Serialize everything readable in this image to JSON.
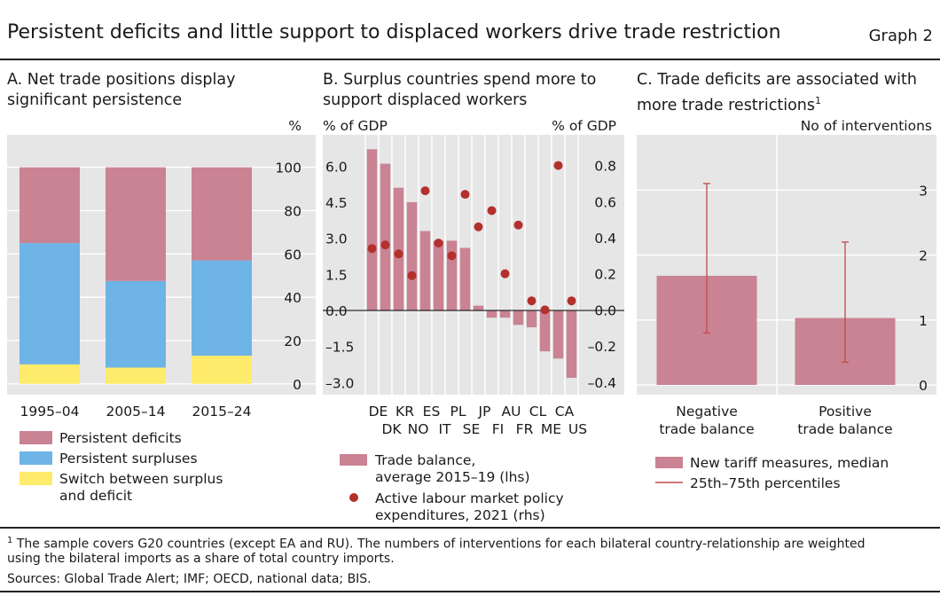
{
  "header": {
    "title": "Persistent deficits and little support to displaced workers drive trade restriction",
    "graph_label": "Graph 2"
  },
  "colors": {
    "panel_bg": "#e6e6e6",
    "deficit": "#c98393",
    "surplus": "#6eb4e6",
    "switch": "#ffeb6b",
    "dot": "#b3302d",
    "whisker": "#c24a4a"
  },
  "panel_a": {
    "title_line1": "A. Net trade positions display",
    "title_line2": "significant persistence"
  },
  "panel_b": {
    "title_line1": "B. Surplus countries spend more to",
    "title_line2": "support displaced workers"
  },
  "panel_c": {
    "title_line1": "C. Trade deficits are associated with",
    "title_line2": "more trade restrictions",
    "title_sup": "1"
  },
  "chart_data": [
    {
      "type": "bar",
      "stacked": true,
      "categories": [
        "1995–04",
        "2005–14",
        "2015–24"
      ],
      "series": [
        {
          "name": "Switch between surplus and deficit",
          "values": [
            9,
            7.5,
            13
          ]
        },
        {
          "name": "Persistent surpluses",
          "values": [
            56,
            40,
            44
          ]
        },
        {
          "name": "Persistent deficits",
          "values": [
            35,
            52.5,
            43
          ]
        }
      ],
      "ylabel": "%",
      "ylim": [
        -5,
        115
      ],
      "yticks": [
        0,
        20,
        40,
        60,
        80,
        100
      ],
      "legend": [
        {
          "label": "Persistent deficits"
        },
        {
          "label": "Persistent surpluses"
        },
        {
          "label": "Switch between surplus",
          "label2": "and deficit"
        }
      ],
      "legend_position": "bottom"
    },
    {
      "type": "bar",
      "categories": [
        "DE",
        "DK",
        "KR",
        "NO",
        "ES",
        "IT",
        "PL",
        "SE",
        "JP",
        "FI",
        "AU",
        "FR",
        "CL",
        "ME",
        "CA",
        "US"
      ],
      "x_labels_top": [
        "DE",
        "KR",
        "ES",
        "PL",
        "JP",
        "AU",
        "CL",
        "CA"
      ],
      "x_labels_bottom": [
        "DK",
        "NO",
        "IT",
        "SE",
        "FI",
        "FR",
        "ME",
        "US"
      ],
      "series": [
        {
          "name": "Trade balance, average 2015–19 (lhs)",
          "axis": "left",
          "values": [
            6.7,
            6.1,
            5.1,
            4.5,
            3.3,
            2.9,
            2.9,
            2.6,
            0.2,
            -0.3,
            -0.3,
            -0.6,
            -0.7,
            -1.7,
            -2.0,
            -2.8
          ]
        },
        {
          "name": "Active labour market policy expenditures, 2021 (rhs)",
          "axis": "right",
          "type": "scatter",
          "values": [
            0.34,
            0.36,
            0.31,
            0.19,
            0.66,
            0.37,
            0.3,
            0.64,
            0.46,
            0.55,
            0.2,
            0.47,
            0.05,
            0,
            0.8,
            0.05
          ]
        }
      ],
      "ylabel_left": "% of GDP",
      "ylabel_right": "% of GDP",
      "ylim_left": [
        -3.5,
        7.3
      ],
      "ylim_right": [
        -0.47,
        0.97
      ],
      "yticks_left": [
        "6.0",
        "4.5",
        "3.0",
        "1.5",
        "0.0",
        "–1.5",
        "–3.0"
      ],
      "yticks_right": [
        "0.8",
        "0.6",
        "0.4",
        "0.2",
        "0.0",
        "–0.2",
        "–0.4"
      ],
      "yticks_left_values": [
        6,
        4.5,
        3,
        1.5,
        0,
        -1.5,
        -3
      ],
      "yticks_right_values": [
        0.8,
        0.6,
        0.4,
        0.2,
        0,
        -0.2,
        -0.4
      ],
      "legend": [
        {
          "label": "Trade balance,",
          "label2": "average 2015–19 (lhs)"
        },
        {
          "label": "Active labour market policy",
          "label2": "expenditures, 2021 (rhs)"
        }
      ],
      "legend_position": "bottom"
    },
    {
      "type": "bar",
      "categories": [
        {
          "line1": "Negative",
          "line2": "trade balance"
        },
        {
          "line1": "Positive",
          "line2": "trade balance"
        }
      ],
      "series": [
        {
          "name": "New tariff measures, median",
          "values": [
            1.68,
            1.03
          ]
        }
      ],
      "p25": [
        0.8,
        0.35
      ],
      "p75": [
        3.1,
        2.2
      ],
      "ylabel": "No of interventions",
      "ylim": [
        -0.15,
        3.85
      ],
      "yticks": [
        0,
        1,
        2,
        3
      ],
      "legend": [
        {
          "label": "New tariff measures, median"
        },
        {
          "label": "25th–75th percentiles"
        }
      ],
      "legend_position": "bottom"
    }
  ],
  "footnote": {
    "sup": "1",
    "line1": "The sample covers G20 countries (except EA and RU). The numbers of interventions for each bilateral country-relationship are weighted",
    "line2": "using the bilateral imports as a share of total country imports.",
    "sources": "Sources: Global Trade Alert; IMF; OECD, national data; BIS."
  }
}
